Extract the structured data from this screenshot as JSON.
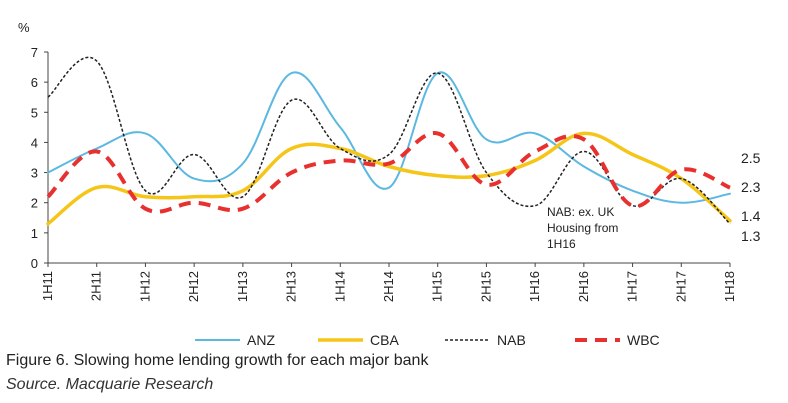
{
  "chart_data": {
    "type": "line",
    "title": "",
    "ylabel": "%",
    "xlabel": "",
    "ylim": [
      0,
      7
    ],
    "yticks": [
      0,
      1,
      2,
      3,
      4,
      5,
      6,
      7
    ],
    "categories": [
      "1H11",
      "2H11",
      "1H12",
      "2H12",
      "1H13",
      "2H13",
      "1H14",
      "2H14",
      "1H15",
      "2H15",
      "1H16",
      "2H16",
      "1H17",
      "2H17",
      "1H18"
    ],
    "series": [
      {
        "name": "ANZ",
        "color": "#5bb8e0",
        "dash": "solid",
        "values": [
          3.0,
          3.8,
          4.3,
          2.8,
          3.3,
          6.3,
          4.5,
          2.5,
          6.3,
          4.1,
          4.3,
          3.2,
          2.4,
          2.0,
          2.3
        ]
      },
      {
        "name": "CBA",
        "color": "#f5c518",
        "dash": "solid",
        "values": [
          1.3,
          2.5,
          2.2,
          2.2,
          2.4,
          3.8,
          3.8,
          3.2,
          2.9,
          2.9,
          3.4,
          4.3,
          3.6,
          2.8,
          1.4
        ]
      },
      {
        "name": "NAB",
        "color": "#222222",
        "dash": "short",
        "values": [
          5.5,
          6.7,
          2.4,
          3.6,
          2.2,
          5.4,
          3.8,
          3.6,
          6.3,
          3.0,
          1.9,
          3.7,
          1.9,
          2.8,
          1.3
        ]
      },
      {
        "name": "WBC",
        "color": "#e8312f",
        "dash": "long",
        "values": [
          2.2,
          3.7,
          1.8,
          2.0,
          1.8,
          3.0,
          3.4,
          3.3,
          4.3,
          2.6,
          3.7,
          4.1,
          1.9,
          3.1,
          2.5
        ]
      }
    ],
    "end_labels": [
      "2.5",
      "2.3",
      "1.4",
      "1.3"
    ],
    "annotation": [
      "NAB: ex. UK",
      "Housing from",
      "1H16"
    ],
    "legend_position": "bottom",
    "grid": false
  },
  "caption": "Figure 6. Slowing home lending growth for each major bank",
  "source": "Source. Macquarie Research"
}
